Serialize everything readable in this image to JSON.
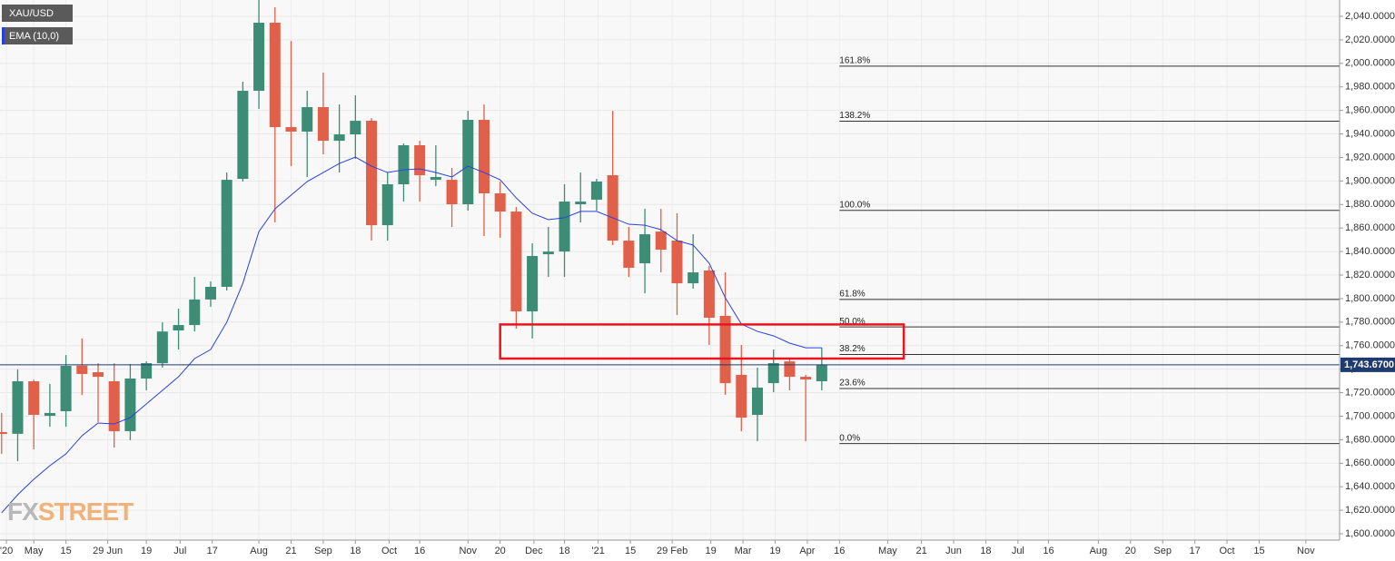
{
  "chart_data": {
    "type": "candlestick",
    "legend": [
      "XAU/USD",
      "EMA (10,0)"
    ],
    "watermark": [
      "FX",
      "STREET"
    ],
    "up_color": "#3d8c76",
    "down_color": "#e0604a",
    "ema_color": "#2a3fe0",
    "xlim": [
      -0.1,
      83.2
    ],
    "ylim": [
      1594.6,
      2053.9
    ],
    "grid": true,
    "xticks": [
      {
        "value": 0.3,
        "label": "'20"
      },
      {
        "value": 2,
        "label": "May"
      },
      {
        "value": 4,
        "label": "15"
      },
      {
        "value": 6.6,
        "label": "29 Jun"
      },
      {
        "value": 9,
        "label": "19"
      },
      {
        "value": 11.1,
        "label": "Jul"
      },
      {
        "value": 13.1,
        "label": "17"
      },
      {
        "value": 16,
        "label": "Aug"
      },
      {
        "value": 18,
        "label": "21"
      },
      {
        "value": 20,
        "label": "Sep"
      },
      {
        "value": 22,
        "label": "18"
      },
      {
        "value": 24.1,
        "label": "Oct"
      },
      {
        "value": 26,
        "label": "16"
      },
      {
        "value": 29,
        "label": "Nov"
      },
      {
        "value": 31,
        "label": "20"
      },
      {
        "value": 33.1,
        "label": "Dec"
      },
      {
        "value": 35,
        "label": "18"
      },
      {
        "value": 37.1,
        "label": "'21"
      },
      {
        "value": 39.1,
        "label": "15"
      },
      {
        "value": 41.7,
        "label": "29 Feb"
      },
      {
        "value": 44.1,
        "label": "19"
      },
      {
        "value": 46.1,
        "label": "Mar"
      },
      {
        "value": 48.1,
        "label": "19"
      },
      {
        "value": 50.1,
        "label": "Apr"
      },
      {
        "value": 52.1,
        "label": "16"
      },
      {
        "value": 55.1,
        "label": "May"
      },
      {
        "value": 57.2,
        "label": "21"
      },
      {
        "value": 59.2,
        "label": "Jun"
      },
      {
        "value": 61.2,
        "label": "18"
      },
      {
        "value": 63.2,
        "label": "Jul"
      },
      {
        "value": 65.1,
        "label": "16"
      },
      {
        "value": 68.2,
        "label": "Aug"
      },
      {
        "value": 70.2,
        "label": "20"
      },
      {
        "value": 72.2,
        "label": "Sep"
      },
      {
        "value": 74.2,
        "label": "17"
      },
      {
        "value": 76.2,
        "label": "Oct"
      },
      {
        "value": 78.2,
        "label": "15"
      },
      {
        "value": 81.1,
        "label": "Nov"
      }
    ],
    "yticks": [
      {
        "value": 1600,
        "label": "1,600.0000"
      },
      {
        "value": 1620,
        "label": "1,620.0000"
      },
      {
        "value": 1640,
        "label": "1,640.0000"
      },
      {
        "value": 1660,
        "label": "1,660.0000"
      },
      {
        "value": 1680,
        "label": "1,680.0000"
      },
      {
        "value": 1700,
        "label": "1,700.0000"
      },
      {
        "value": 1720,
        "label": "1,720.0000"
      },
      {
        "value": 1740,
        "label": "1,740.0000"
      },
      {
        "value": 1760,
        "label": "1,760.0000"
      },
      {
        "value": 1780,
        "label": "1,780.0000"
      },
      {
        "value": 1800,
        "label": "1,800.0000"
      },
      {
        "value": 1820,
        "label": "1,820.0000"
      },
      {
        "value": 1840,
        "label": "1,840.0000"
      },
      {
        "value": 1860,
        "label": "1,860.0000"
      },
      {
        "value": 1880,
        "label": "1,880.0000"
      },
      {
        "value": 1900,
        "label": "1,900.0000"
      },
      {
        "value": 1920,
        "label": "1,920.0000"
      },
      {
        "value": 1940,
        "label": "1,940.0000"
      },
      {
        "value": 1960,
        "label": "1,960.0000"
      },
      {
        "value": 1980,
        "label": "1,980.0000"
      },
      {
        "value": 2000,
        "label": "2,000.0000"
      },
      {
        "value": 2020,
        "label": "2,020.0000"
      },
      {
        "value": 2040,
        "label": "2,040.0000"
      }
    ],
    "open": [
      1686.5,
      1685,
      1729.7,
      1700.3,
      1704.2,
      1743,
      1737.4,
      1729.7,
      1687.2,
      1732,
      1745,
      1772.9,
      1777.5,
      1799.2,
      1810,
      1901.8,
      1976.7,
      2034.6,
      1945.8,
      1942,
      1962.8,
      1934.2,
      1939.6,
      1951.2,
      1862.4,
      1897.2,
      1930.4,
      1901,
      1901,
      1880.2,
      1952,
      1889.5,
      1874,
      1789.1,
      1837.7,
      1840,
      1880.2,
      1884.1,
      1904.9,
      1849.3,
      1830,
      1857,
      1849.3,
      1813,
      1823.9,
      1785.3,
      1735.1,
      1701.1,
      1728.1,
      1746.6,
      1733.5,
      1729.7
    ],
    "high": [
      1702.7,
      1739.7,
      1731,
      1727.4,
      1752,
      1766,
      1745,
      1745,
      1744.4,
      1746.6,
      1779.8,
      1791.4,
      1818.4,
      1814.6,
      1907.2,
      1984.4,
      2055,
      2047.7,
      2019.1,
      1976.7,
      1992.1,
      1965.1,
      1972.8,
      1953.5,
      1907.2,
      1932,
      1934.2,
      1930.4,
      1911.1,
      1959.7,
      1965.1,
      1899.5,
      1877.9,
      1847,
      1860.9,
      1897.2,
      1907.2,
      1901.8,
      1959.7,
      1860.9,
      1876.3,
      1876.3,
      1872.5,
      1854.7,
      1827.7,
      1822.3,
      1760.6,
      1741.3,
      1756.7,
      1749,
      1735.1,
      1758.2
    ],
    "low": [
      1668,
      1661.8,
      1671.8,
      1691,
      1691,
      1718,
      1695,
      1673.3,
      1679.5,
      1722,
      1741.3,
      1756.7,
      1772.1,
      1793,
      1806.9,
      1899.5,
      1961.3,
      1864.8,
      1912.6,
      1903.4,
      1922.6,
      1907.2,
      1918.8,
      1849.3,
      1849.3,
      1882.5,
      1882.5,
      1895.6,
      1860.9,
      1874.8,
      1853.2,
      1851.6,
      1774.4,
      1766,
      1818.4,
      1818.4,
      1864.8,
      1874.8,
      1845.5,
      1818.4,
      1804.5,
      1822.3,
      1786,
      1808.4,
      1760.6,
      1718.1,
      1687.2,
      1678.7,
      1720.4,
      1722,
      1678.7,
      1722
    ],
    "close": [
      1684.9,
      1729.7,
      1701.1,
      1702.7,
      1742.8,
      1735.9,
      1733.5,
      1687.2,
      1732,
      1745.1,
      1772,
      1777.5,
      1799.2,
      1810,
      1901,
      1976.7,
      2034.6,
      1945.8,
      1942,
      1962.8,
      1934.2,
      1939.6,
      1951.2,
      1862.4,
      1897.2,
      1930.4,
      1904.9,
      1903.4,
      1880.2,
      1952,
      1889.5,
      1874,
      1789.1,
      1836.2,
      1840,
      1882.5,
      1882.5,
      1899.5,
      1849.3,
      1826.2,
      1854.7,
      1841.6,
      1813,
      1822.3,
      1783.7,
      1728.1,
      1698.8,
      1724.3,
      1745.1,
      1733.5,
      1731.2,
      1743.7
    ],
    "ema": [
      1617.8,
      1633.2,
      1646.3,
      1657.9,
      1667.9,
      1683.4,
      1694.2,
      1693.4,
      1698.8,
      1710.4,
      1722,
      1733.5,
      1749,
      1756.7,
      1779.9,
      1813,
      1857,
      1876.3,
      1887.9,
      1899.5,
      1907.2,
      1914.9,
      1920.3,
      1912.6,
      1907.2,
      1909.5,
      1910.3,
      1907.2,
      1903.4,
      1912.6,
      1907.2,
      1901,
      1885.6,
      1872.5,
      1867.1,
      1868.7,
      1874.1,
      1874.1,
      1868.7,
      1863.2,
      1862.4,
      1858.6,
      1849.3,
      1845.5,
      1830,
      1800.7,
      1778.3,
      1772.1,
      1768.3,
      1762.1,
      1758.2,
      1758.2
    ],
    "last_price": 1743.67,
    "last_price_label": "1,743.6700",
    "fib_levels": [
      {
        "name": "161.8%",
        "price": 1997.6
      },
      {
        "name": "138.2%",
        "price": 1950.8
      },
      {
        "name": "100.0%",
        "price": 1875
      },
      {
        "name": "61.8%",
        "price": 1799.3
      },
      {
        "name": "50.0%",
        "price": 1775.9
      },
      {
        "name": "38.2%",
        "price": 1752.5
      },
      {
        "name": "23.6%",
        "price": 1723.5
      },
      {
        "name": "0.0%",
        "price": 1676.7
      }
    ],
    "fib_start": 52.1,
    "highlight": {
      "x": [
        31,
        56.1
      ],
      "y": [
        1749,
        1778
      ],
      "color": "#e8141e"
    }
  }
}
